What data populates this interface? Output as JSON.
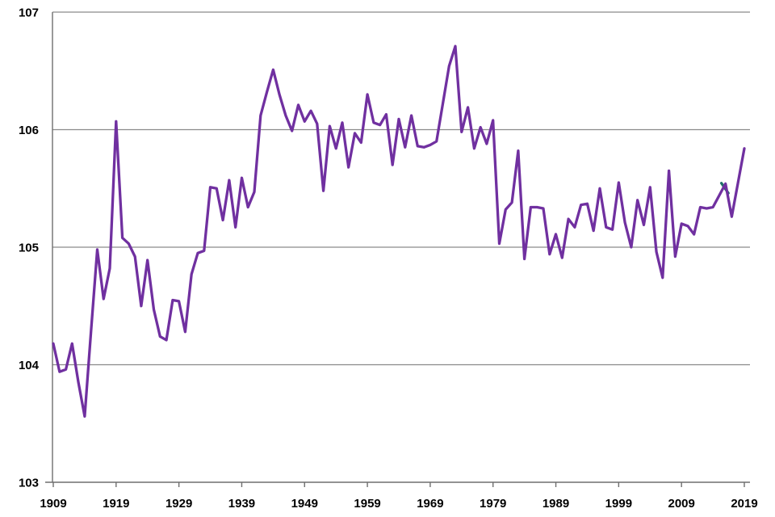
{
  "page": {
    "title": "",
    "background": "#FFFFFF"
  },
  "colors": {
    "series_purple": "#7030A0",
    "series_teal": "#1F7168",
    "gridline": "#8A8A8A",
    "axis": "#6E6E6E",
    "tick": "#6E6E6E",
    "label": "#000000",
    "background": "#FFFFFF"
  },
  "chart_data": {
    "type": "line",
    "title": "",
    "xlabel": "",
    "ylabel": "",
    "xlim": [
      1909,
      2019
    ],
    "ylim": [
      103,
      107
    ],
    "yticks": [
      103,
      104,
      105,
      106,
      107
    ],
    "xticks": [
      1909,
      1919,
      1929,
      1939,
      1949,
      1959,
      1969,
      1979,
      1989,
      1999,
      2009,
      2019
    ],
    "grid": true,
    "legend": "none",
    "x": [
      1909,
      1910,
      1911,
      1912,
      1913,
      1914,
      1915,
      1916,
      1917,
      1918,
      1919,
      1920,
      1921,
      1922,
      1923,
      1924,
      1925,
      1926,
      1927,
      1928,
      1929,
      1930,
      1931,
      1932,
      1933,
      1934,
      1935,
      1936,
      1937,
      1938,
      1939,
      1940,
      1941,
      1942,
      1943,
      1944,
      1945,
      1946,
      1947,
      1948,
      1949,
      1950,
      1951,
      1952,
      1953,
      1954,
      1955,
      1956,
      1957,
      1958,
      1959,
      1960,
      1961,
      1962,
      1963,
      1964,
      1965,
      1966,
      1967,
      1968,
      1969,
      1970,
      1971,
      1972,
      1973,
      1974,
      1975,
      1976,
      1977,
      1978,
      1979,
      1980,
      1981,
      1982,
      1983,
      1984,
      1985,
      1986,
      1987,
      1988,
      1989,
      1990,
      1991,
      1992,
      1993,
      1994,
      1995,
      1996,
      1997,
      1998,
      1999,
      2000,
      2001,
      2002,
      2003,
      2004,
      2005,
      2006,
      2007,
      2008,
      2009,
      2010,
      2011,
      2012,
      2013,
      2014,
      2015,
      2016,
      2017,
      2018,
      2019
    ],
    "series": [
      {
        "name": "index-line",
        "color": "#7030A0",
        "values": [
          104.18,
          103.94,
          103.96,
          104.18,
          103.85,
          103.56,
          104.28,
          104.98,
          104.56,
          104.82,
          106.07,
          105.08,
          105.03,
          104.92,
          104.5,
          104.89,
          104.47,
          104.24,
          104.21,
          104.55,
          104.54,
          104.28,
          104.77,
          104.95,
          104.97,
          105.51,
          105.5,
          105.23,
          105.57,
          105.17,
          105.59,
          105.34,
          105.47,
          106.12,
          106.32,
          106.51,
          106.3,
          106.12,
          105.99,
          106.21,
          106.07,
          106.16,
          106.05,
          105.48,
          106.03,
          105.84,
          106.06,
          105.68,
          105.97,
          105.89,
          106.3,
          106.06,
          106.04,
          106.13,
          105.7,
          106.09,
          105.85,
          106.12,
          105.86,
          105.85,
          105.87,
          105.9,
          106.22,
          106.54,
          106.71,
          105.98,
          106.19,
          105.84,
          106.02,
          105.88,
          106.08,
          105.03,
          105.32,
          105.38,
          105.82,
          104.9,
          105.34,
          105.34,
          105.33,
          104.94,
          105.11,
          104.91,
          105.24,
          105.17,
          105.36,
          105.37,
          105.14,
          105.5,
          105.17,
          105.15,
          105.55,
          105.21,
          105.0,
          105.4,
          105.19,
          105.51,
          104.96,
          104.74,
          105.65,
          104.92,
          105.2,
          105.18,
          105.11,
          105.34,
          105.33,
          105.34,
          105.44,
          105.54,
          105.26,
          105.55,
          105.84
        ]
      },
      {
        "name": "partially-hidden-teal-segment",
        "color": "#1F7168",
        "points": [
          [
            2015.35,
            105.545
          ],
          [
            2016.45,
            105.46
          ]
        ]
      }
    ]
  }
}
